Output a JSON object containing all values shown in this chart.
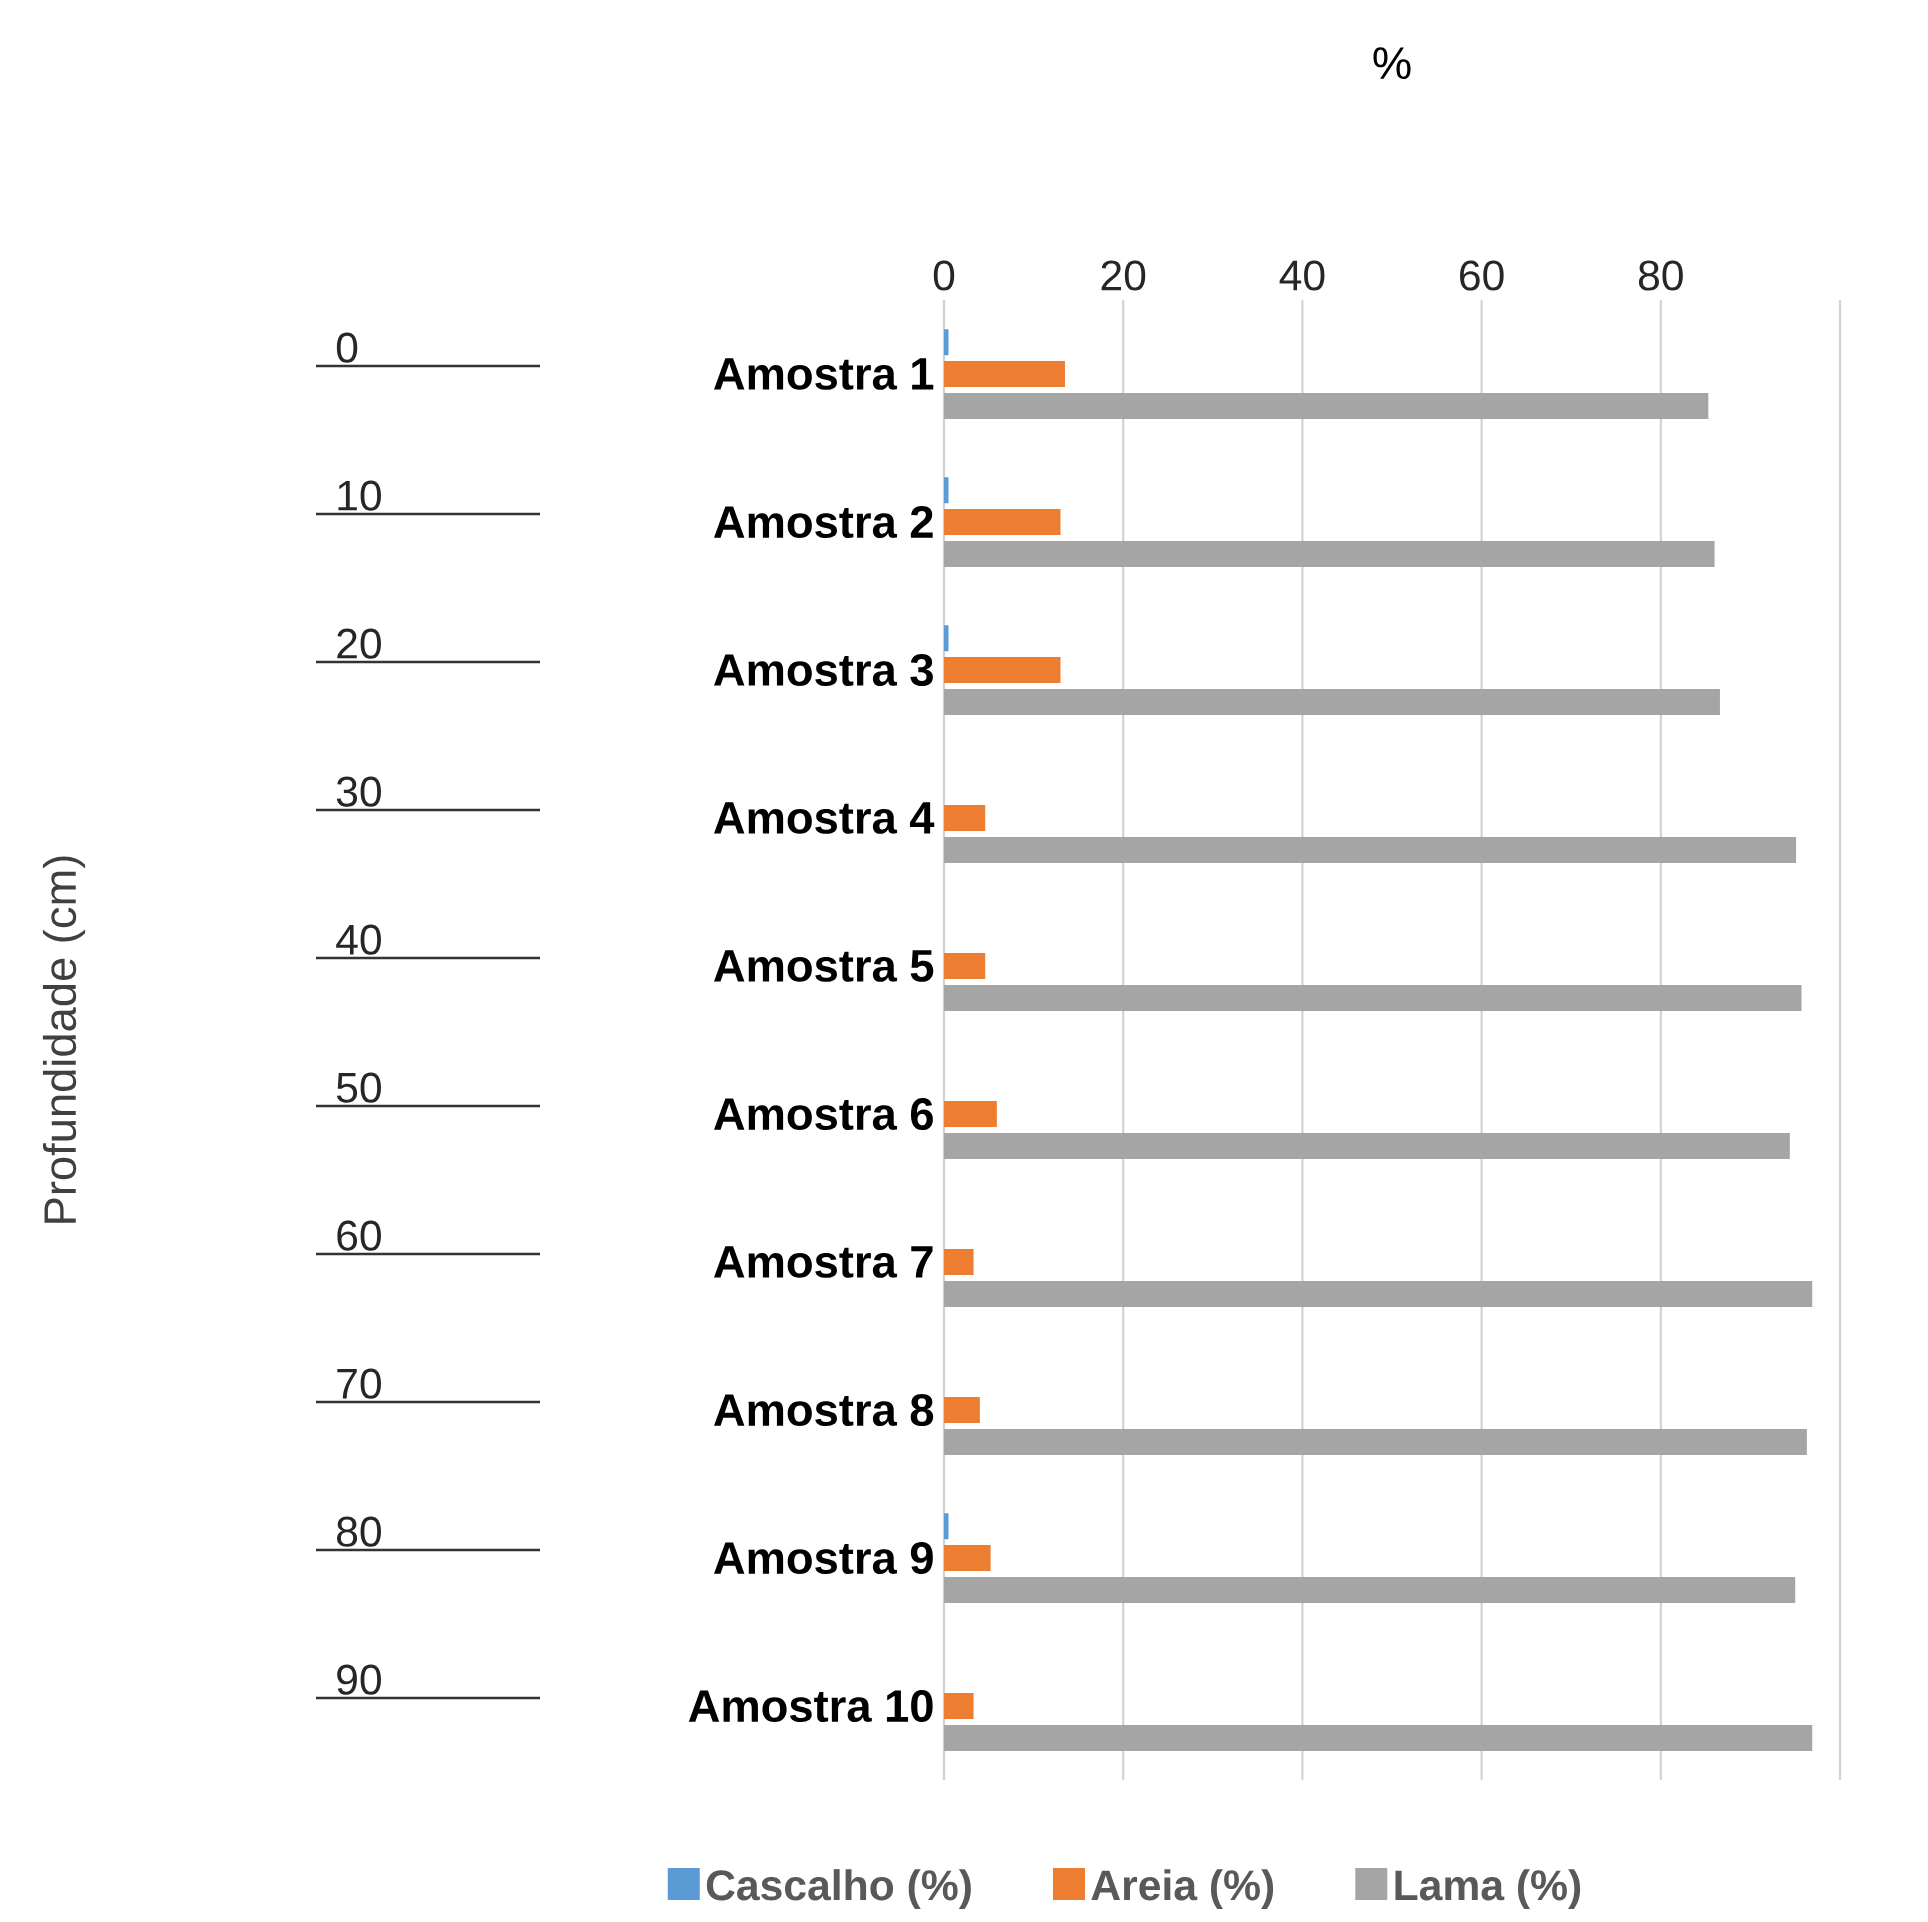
{
  "chart_data": {
    "type": "bar",
    "orientation": "horizontal",
    "xlabel": "%",
    "categories": [
      "Amostra 1",
      "Amostra 2",
      "Amostra 3",
      "Amostra 4",
      "Amostra 5",
      "Amostra 6",
      "Amostra 7",
      "Amostra 8",
      "Amostra 9",
      "Amostra 10"
    ],
    "series": [
      {
        "name": "Cascalho (%)",
        "color": "#5b9bd5",
        "values": [
          0.5,
          0.5,
          0.5,
          0,
          0,
          0,
          0,
          0,
          0.5,
          0
        ]
      },
      {
        "name": "Areia (%)",
        "color": "#ed7d31",
        "values": [
          13.5,
          13.0,
          13.0,
          4.6,
          4.6,
          5.9,
          3.3,
          4.0,
          5.2,
          3.3
        ]
      },
      {
        "name": "Lama (%)",
        "color": "#a5a5a5",
        "values": [
          85.3,
          86.0,
          86.6,
          95.1,
          95.7,
          94.4,
          96.9,
          96.3,
          95.0,
          96.9
        ]
      }
    ],
    "xlim": [
      0,
      100
    ],
    "xticks": [
      0,
      20,
      40,
      60,
      80,
      {
        "value": 100,
        "label": null
      }
    ],
    "annotations": [
      "Profundidade (cm)",
      "0",
      "10",
      "20",
      "30",
      "40",
      "50",
      "60",
      "70",
      "80",
      "90"
    ],
    "grid": "x",
    "legend": "bottom"
  }
}
